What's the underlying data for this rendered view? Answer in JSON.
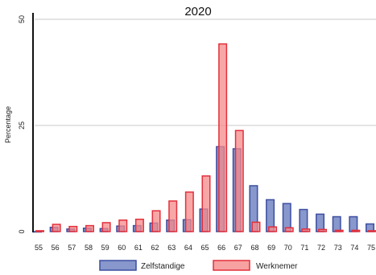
{
  "chart_data": {
    "type": "bar",
    "title": "2020",
    "ylabel": "Percentage",
    "xlabel": "",
    "ylim": [
      0,
      50
    ],
    "yticks": [
      0,
      25,
      50
    ],
    "grid": true,
    "legend_position": "bottom-center",
    "categories": [
      "55",
      "56",
      "57",
      "58",
      "59",
      "60",
      "61",
      "62",
      "63",
      "64",
      "65",
      "66",
      "67",
      "68",
      "69",
      "70",
      "71",
      "72",
      "73",
      "74",
      "75"
    ],
    "series": [
      {
        "name": "Zelfstandige",
        "color": "#6a7dbf",
        "edge": "#3c4ea0",
        "values": [
          0,
          1.0,
          0.6,
          0.8,
          0.7,
          1.3,
          1.4,
          2.0,
          2.7,
          2.8,
          5.3,
          20.0,
          19.5,
          10.8,
          7.5,
          6.6,
          5.2,
          4.1,
          3.5,
          3.5,
          1.8
        ]
      },
      {
        "name": "Werknemer",
        "color": "#f58a8a",
        "edge": "#e2303c",
        "values": [
          0.2,
          1.7,
          1.2,
          1.4,
          2.1,
          2.7,
          2.9,
          4.9,
          7.2,
          9.3,
          13.1,
          44.2,
          23.8,
          2.2,
          1.1,
          0.9,
          0.6,
          0.5,
          0.3,
          0.3,
          0.2
        ]
      }
    ]
  }
}
